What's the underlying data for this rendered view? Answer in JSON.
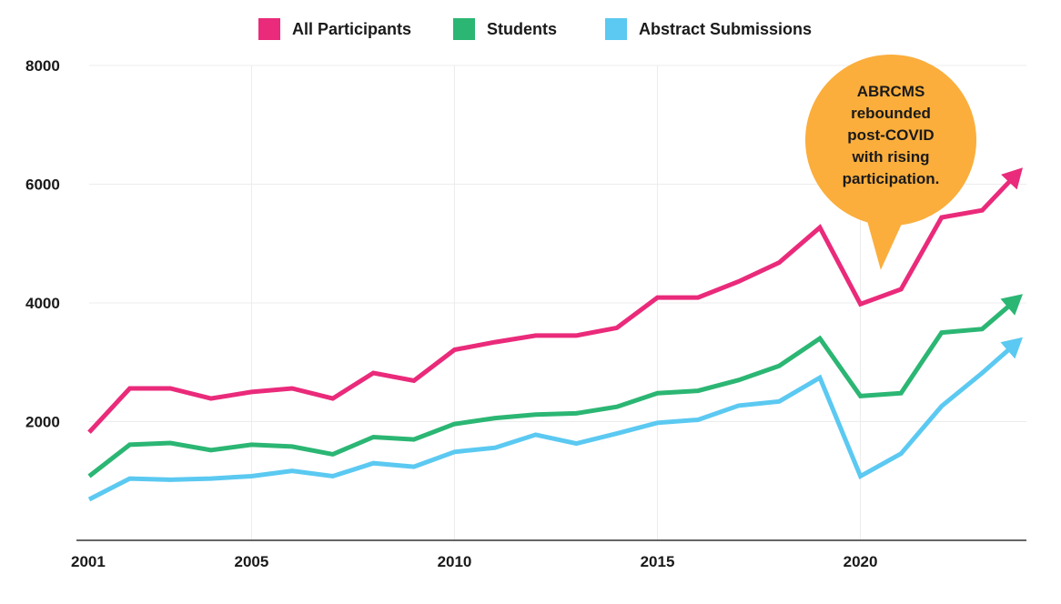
{
  "chart_data": {
    "type": "line",
    "title": "",
    "xlabel": "",
    "ylabel": "",
    "x": [
      2001,
      2002,
      2003,
      2004,
      2005,
      2006,
      2007,
      2008,
      2009,
      2010,
      2011,
      2012,
      2013,
      2014,
      2015,
      2016,
      2017,
      2018,
      2019,
      2020,
      2021,
      2022,
      2023,
      2024
    ],
    "xlim": [
      2001,
      2024
    ],
    "ylim": [
      0,
      8000
    ],
    "x_ticks": [
      "2001",
      "2005",
      "2010",
      "2015",
      "2020"
    ],
    "x_tick_values": [
      2001,
      2005,
      2010,
      2015,
      2020
    ],
    "y_ticks": [
      "2000",
      "4000",
      "6000",
      "8000"
    ],
    "y_tick_values": [
      2000,
      4000,
      6000,
      8000
    ],
    "grid": true,
    "legend_position": "top-center",
    "series": [
      {
        "name": "All Participants",
        "color": "#ea2a7a",
        "values": [
          1820,
          2560,
          2560,
          2390,
          2500,
          2560,
          2390,
          2820,
          2690,
          3210,
          3340,
          3450,
          3450,
          3580,
          4090,
          4090,
          4360,
          4680,
          5270,
          3980,
          4230,
          5440,
          5560,
          6280
        ]
      },
      {
        "name": "Students",
        "color": "#2bb673",
        "values": [
          1080,
          1610,
          1640,
          1520,
          1610,
          1580,
          1450,
          1740,
          1700,
          1960,
          2060,
          2120,
          2140,
          2250,
          2480,
          2520,
          2700,
          2940,
          3400,
          2430,
          2480,
          3500,
          3560,
          4150
        ]
      },
      {
        "name": "Abstract Submissions",
        "color": "#5bc9f1",
        "values": [
          690,
          1040,
          1020,
          1040,
          1080,
          1170,
          1080,
          1300,
          1240,
          1490,
          1560,
          1780,
          1630,
          1800,
          1980,
          2030,
          2270,
          2340,
          2740,
          1080,
          1460,
          2260,
          2820,
          3420
        ]
      }
    ],
    "annotations": [
      {
        "text": [
          "ABRCMS",
          "rebounded",
          "post-COVID",
          "with rising",
          "participation."
        ],
        "color": "#fbae3c",
        "points_to_x": 2020.5,
        "points_to_y": 4250
      }
    ]
  }
}
